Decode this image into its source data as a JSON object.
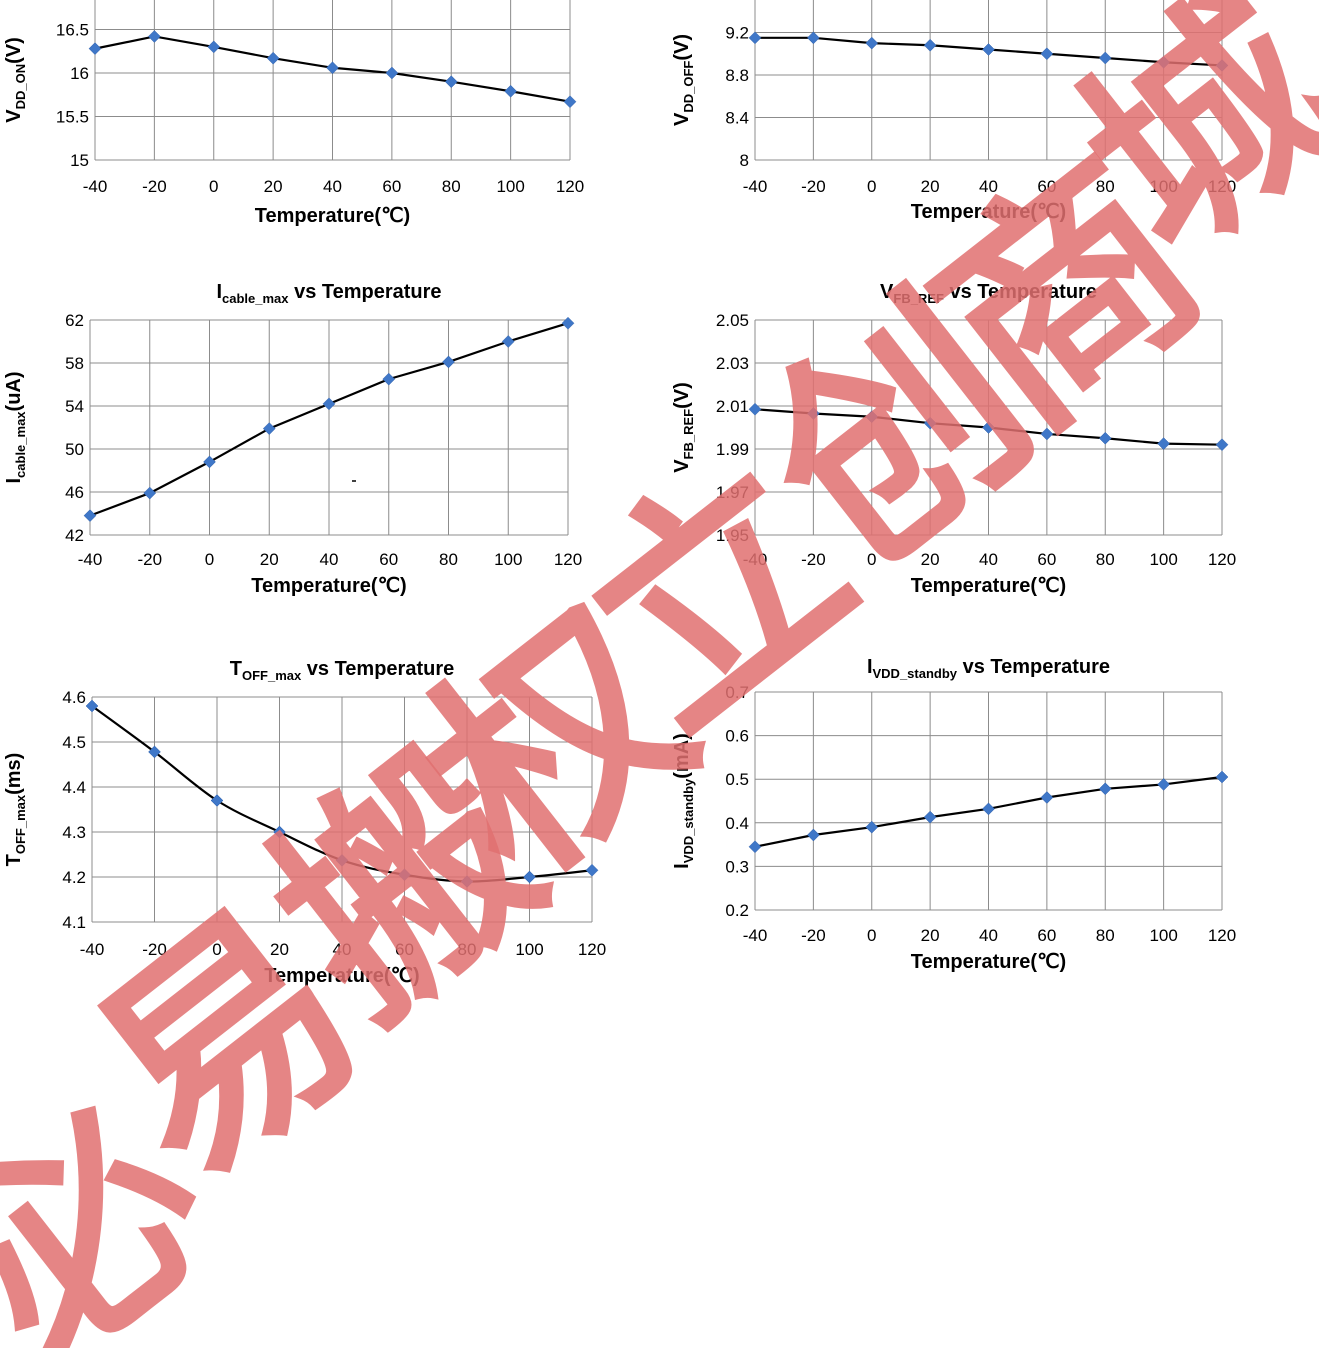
{
  "chart_data": [
    {
      "type": "line",
      "title": "",
      "title_main": "",
      "title_sub": "",
      "title_tail": "",
      "xlabel": "Temperature(℃)",
      "ylabel_main": "V",
      "ylabel_sub": "DD_ON",
      "ylabel_tail": "(V)",
      "x": [
        -40,
        -20,
        0,
        20,
        40,
        60,
        80,
        100,
        120
      ],
      "y": [
        16.28,
        16.42,
        16.3,
        16.17,
        16.06,
        16.0,
        15.9,
        15.79,
        15.67
      ],
      "ylim": [
        15,
        17
      ],
      "yticks_shown": [
        "15",
        "15.5",
        "16",
        "16.5"
      ],
      "ytick_values": [
        15,
        15.5,
        16,
        16.5
      ],
      "xticks": [
        "-40",
        "-20",
        "0",
        "20",
        "40",
        "60",
        "80",
        "100",
        "120"
      ],
      "smooth": false,
      "grid": true,
      "color": "#3f77c8"
    },
    {
      "type": "line",
      "title": "",
      "title_main": "",
      "title_sub": "",
      "title_tail": "",
      "xlabel": "Temperature(℃)",
      "ylabel_main": "V",
      "ylabel_sub": "DD_OFF",
      "ylabel_tail": "(V)",
      "x": [
        -40,
        -20,
        0,
        20,
        40,
        60,
        80,
        100,
        120
      ],
      "y": [
        9.15,
        9.15,
        9.1,
        9.08,
        9.04,
        9.0,
        8.96,
        8.92,
        8.89
      ],
      "ylim": [
        8,
        9.6
      ],
      "yticks_shown": [
        "8",
        "8.4",
        "8.8",
        "9.2"
      ],
      "ytick_values": [
        8,
        8.4,
        8.8,
        9.2
      ],
      "xticks": [
        "-40",
        "-20",
        "0",
        "20",
        "40",
        "60",
        "80",
        "100",
        "120"
      ],
      "smooth": false,
      "grid": true,
      "color": "#3f77c8"
    },
    {
      "type": "line",
      "title": "",
      "title_main": "I",
      "title_sub": "cable_max",
      "title_tail": " vs Temperature",
      "xlabel": "Temperature(℃)",
      "ylabel_main": "I",
      "ylabel_sub": "cable_max",
      "ylabel_tail": "(uA)",
      "x": [
        -40,
        -20,
        0,
        20,
        40,
        60,
        80,
        100,
        120
      ],
      "y": [
        43.8,
        45.9,
        48.8,
        51.9,
        54.2,
        56.5,
        58.1,
        60.0,
        61.7
      ],
      "ylim": [
        42,
        62
      ],
      "yticks_shown": [
        "42",
        "46",
        "50",
        "54",
        "58",
        "62"
      ],
      "ytick_values": [
        42,
        46,
        50,
        54,
        58,
        62
      ],
      "xticks": [
        "-40",
        "-20",
        "0",
        "20",
        "40",
        "60",
        "80",
        "100",
        "120"
      ],
      "smooth": false,
      "grid": true,
      "color": "#3f77c8"
    },
    {
      "type": "line",
      "title": "",
      "title_main": "V",
      "title_sub": "FB_REF",
      "title_tail": " vs Temperature",
      "xlabel": "Temperature(℃)",
      "ylabel_main": "V",
      "ylabel_sub": "FB_REF",
      "ylabel_tail": "(V)",
      "x": [
        -40,
        -20,
        0,
        20,
        40,
        60,
        80,
        100,
        120
      ],
      "y": [
        2.0085,
        2.0065,
        2.005,
        2.002,
        2.0,
        1.997,
        1.995,
        1.9925,
        1.992
      ],
      "ylim": [
        1.95,
        2.05
      ],
      "yticks_shown": [
        "1.95",
        "1.97",
        "1.99",
        "2.01",
        "2.03",
        "2.05"
      ],
      "ytick_values": [
        1.95,
        1.97,
        1.99,
        2.01,
        2.03,
        2.05
      ],
      "xticks": [
        "-40",
        "-20",
        "0",
        "20",
        "40",
        "60",
        "80",
        "100",
        "120"
      ],
      "smooth": false,
      "grid": true,
      "color": "#3f77c8"
    },
    {
      "type": "line",
      "title": "",
      "title_main": "T",
      "title_sub": "OFF_max",
      "title_tail": " vs Temperature",
      "xlabel": "Temperature(℃)",
      "ylabel_main": "T",
      "ylabel_sub": "OFF_max",
      "ylabel_tail": "(ms)",
      "x": [
        -40,
        -20,
        0,
        20,
        40,
        60,
        80,
        100,
        120
      ],
      "y": [
        4.58,
        4.478,
        4.37,
        4.3,
        4.237,
        4.205,
        4.19,
        4.2,
        4.215
      ],
      "ylim": [
        4.1,
        4.6
      ],
      "yticks_shown": [
        "4.1",
        "4.2",
        "4.3",
        "4.4",
        "4.5",
        "4.6"
      ],
      "ytick_values": [
        4.1,
        4.2,
        4.3,
        4.4,
        4.5,
        4.6
      ],
      "xticks": [
        "-40",
        "-20",
        "0",
        "20",
        "40",
        "60",
        "80",
        "100",
        "120"
      ],
      "smooth": true,
      "grid": true,
      "color": "#3f77c8"
    },
    {
      "type": "line",
      "title": "",
      "title_main": "I",
      "title_sub": "VDD_standby",
      "title_tail": " vs Temperature",
      "xlabel": "Temperature(℃)",
      "ylabel_main": "I",
      "ylabel_sub": "VDD_standby",
      "ylabel_tail": "(mA)",
      "x": [
        -40,
        -20,
        0,
        20,
        40,
        60,
        80,
        100,
        120
      ],
      "y": [
        0.345,
        0.372,
        0.39,
        0.413,
        0.432,
        0.458,
        0.478,
        0.488,
        0.505
      ],
      "ylim": [
        0.2,
        0.7
      ],
      "yticks_shown": [
        "0.2",
        "0.3",
        "0.4",
        "0.5",
        "0.6",
        "0.7"
      ],
      "ytick_values": [
        0.2,
        0.3,
        0.4,
        0.5,
        0.6,
        0.7
      ],
      "xticks": [
        "-40",
        "-20",
        "0",
        "20",
        "40",
        "60",
        "80",
        "100",
        "120"
      ],
      "smooth": false,
      "grid": true,
      "color": "#3f77c8"
    }
  ],
  "watermark": {
    "characters": [
      "必",
      "易",
      "搬",
      "权",
      "立",
      "创",
      "商",
      "城"
    ],
    "color": "#e07070"
  }
}
